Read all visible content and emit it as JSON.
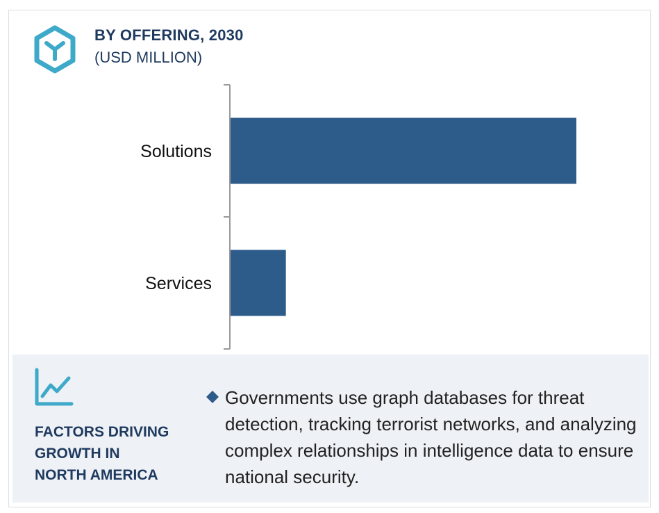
{
  "header": {
    "title": "BY OFFERING, 2030",
    "subtitle": "(USD MILLION)",
    "icon": "hexagon-y-icon"
  },
  "colors": {
    "bar": "#2d5b8a",
    "accent": "#3ea9c9",
    "heading": "#1f3a5f",
    "panel_bg": "#eef1f5"
  },
  "chart_data": {
    "type": "bar",
    "orientation": "horizontal",
    "title": "BY OFFERING, 2030",
    "subtitle": "(USD MILLION)",
    "categories": [
      "Solutions",
      "Services"
    ],
    "values": [
      100,
      16
    ],
    "value_note": "",
    "xlim": [
      0,
      100
    ],
    "grid": false,
    "legend": "none"
  },
  "factors": {
    "icon": "line-chart-icon",
    "heading_lines": [
      "FACTORS DRIVING",
      "GROWTH IN",
      "NORTH AMERICA"
    ],
    "bullet": "Governments use graph databases for threat detection, tracking terrorist networks, and analyzing complex relationships in intelligence data to ensure national security."
  }
}
